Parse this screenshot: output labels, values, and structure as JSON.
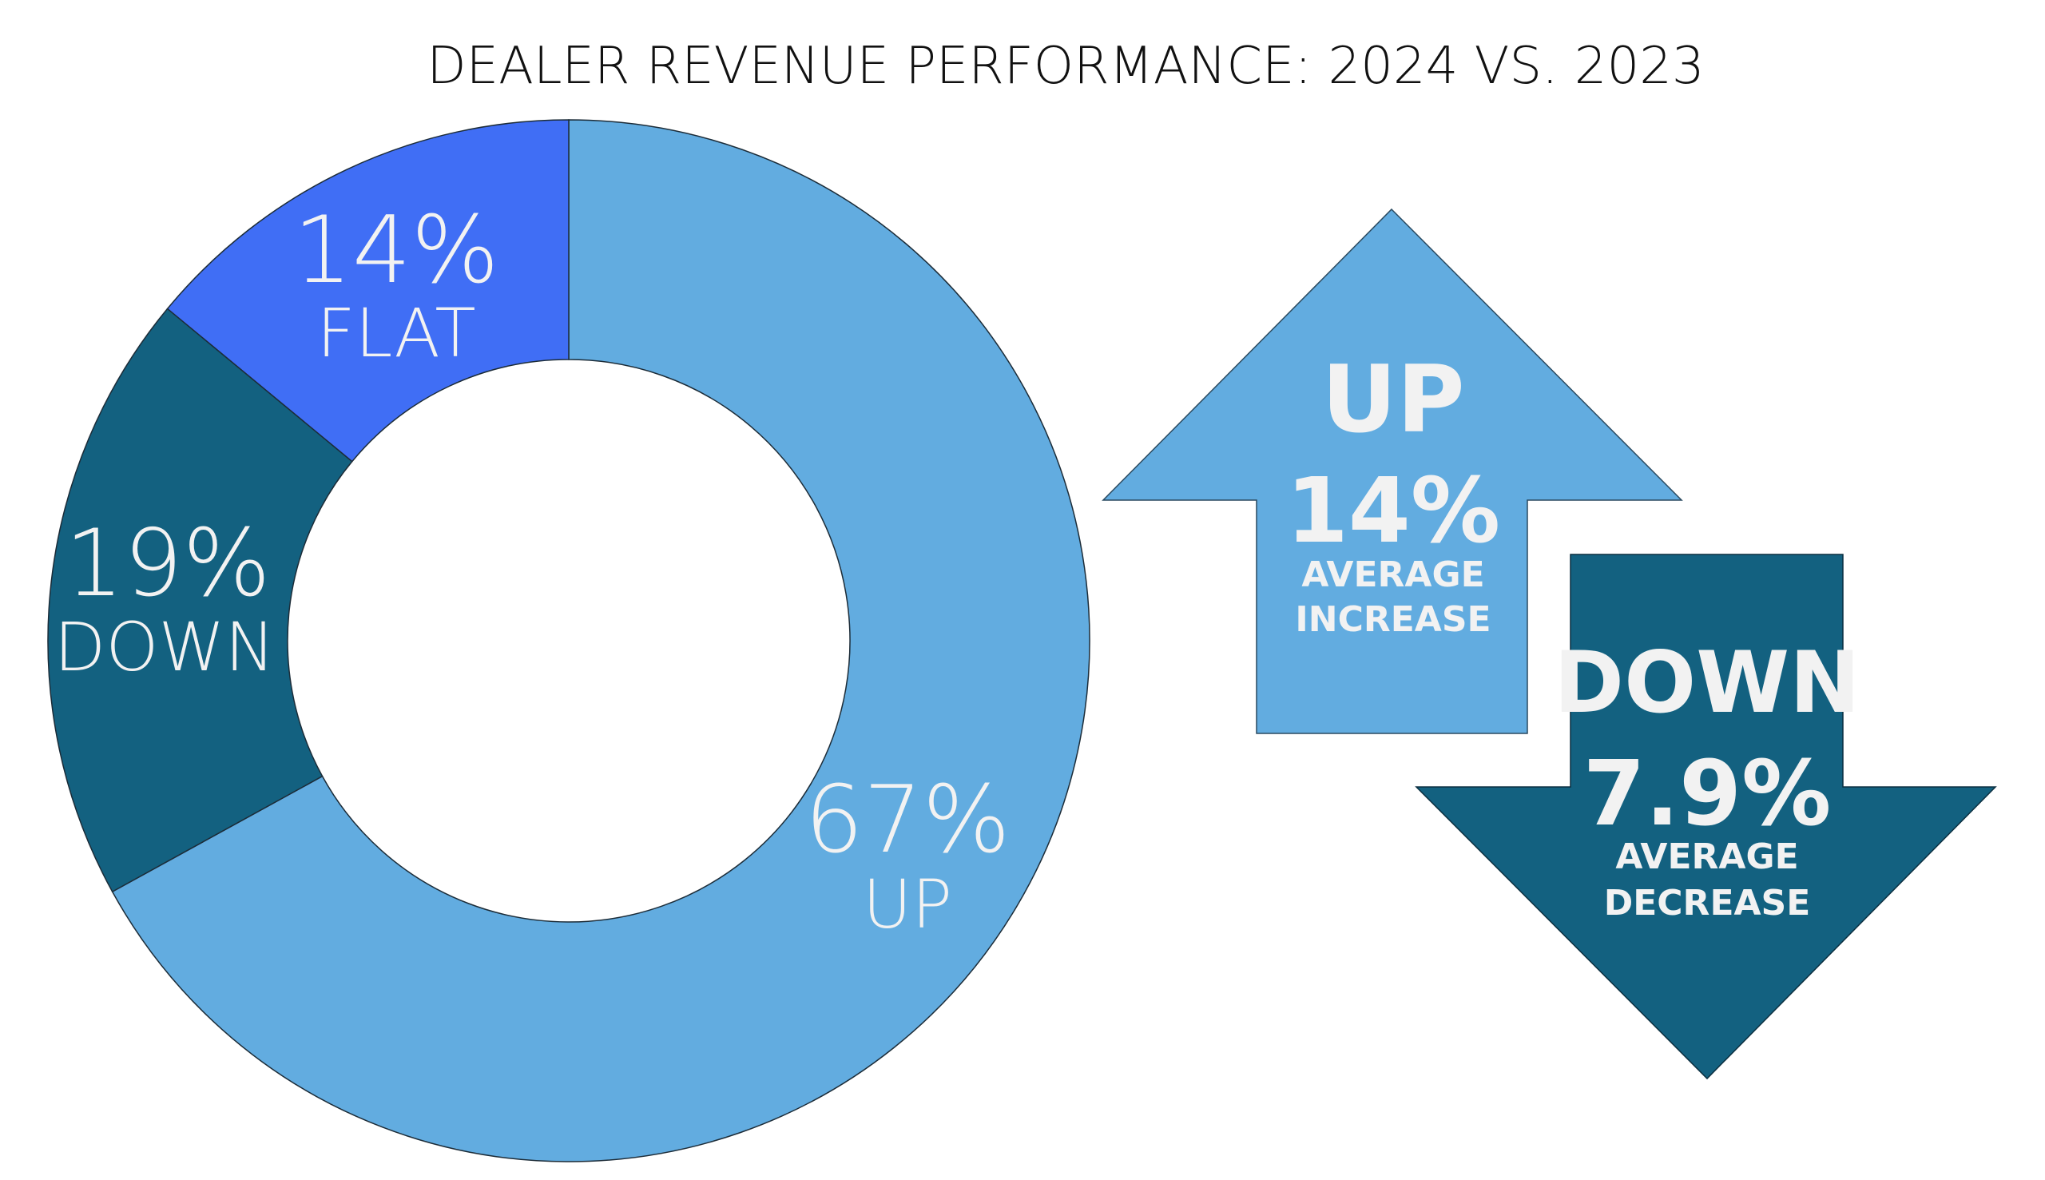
{
  "chart_data": {
    "type": "pie",
    "variant": "donut",
    "title": "DEALER REVENUE PERFORMANCE: 2024 VS. 2023",
    "slices": [
      {
        "label": "UP",
        "value": 67,
        "display": "67%",
        "color": "#62ACE0"
      },
      {
        "label": "DOWN",
        "value": 19,
        "display": "19%",
        "color": "#136180"
      },
      {
        "label": "FLAT",
        "value": 14,
        "display": "14%",
        "color": "#406EF5"
      }
    ],
    "callouts": [
      {
        "direction": "up",
        "heading": "UP",
        "value": "14%",
        "line1": "AVERAGE",
        "line2": "INCREASE",
        "color": "#62ACE0"
      },
      {
        "direction": "down",
        "heading": "DOWN",
        "value": "7.9%",
        "line1": "AVERAGE",
        "line2": "DECREASE",
        "color": "#136180"
      }
    ]
  }
}
